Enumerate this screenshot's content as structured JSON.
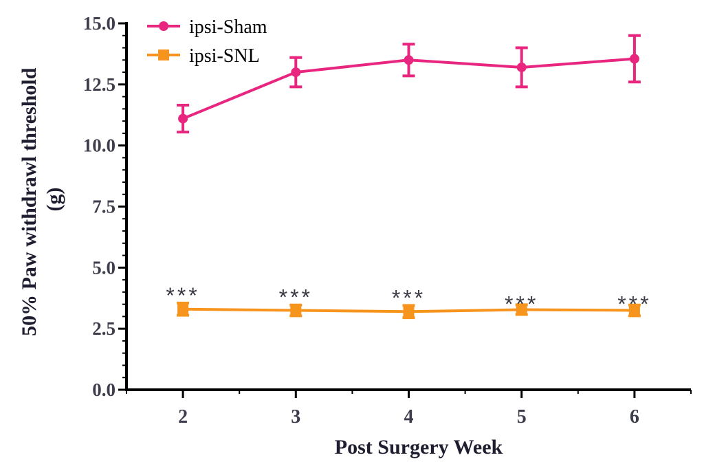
{
  "chart_data": {
    "type": "line",
    "x": [
      2,
      3,
      4,
      5,
      6
    ],
    "xlabel": "Post Surgery Week",
    "ylabel": "50% Paw withdrawl threshold (g)",
    "ylabel_lines": [
      "50% Paw withdrawl threshold",
      "(g)"
    ],
    "xlim": [
      1.5,
      6.5
    ],
    "ylim": [
      0,
      15
    ],
    "yticks": [
      0.0,
      2.5,
      5.0,
      7.5,
      10.0,
      12.5,
      15.0
    ],
    "ytick_labels": [
      "0.0",
      "2.5",
      "5.0",
      "7.5",
      "10.0",
      "12.5",
      "15.0"
    ],
    "xtick_labels": [
      "2",
      "3",
      "4",
      "5",
      "6"
    ],
    "grid": false,
    "legend_position": "top-left",
    "series": [
      {
        "name": "ipsi-Sham",
        "color": "#e8267f",
        "marker": "circle",
        "values": [
          11.1,
          13.0,
          13.5,
          13.2,
          13.55
        ],
        "errors": [
          0.55,
          0.6,
          0.65,
          0.8,
          0.95
        ]
      },
      {
        "name": "ipsi-SNL",
        "color": "#f7941d",
        "marker": "square",
        "values": [
          3.3,
          3.25,
          3.2,
          3.28,
          3.25
        ],
        "errors": [
          0.25,
          0.22,
          0.25,
          0.2,
          0.22
        ]
      }
    ],
    "annotations": [
      {
        "x": 2,
        "text": "***"
      },
      {
        "x": 3,
        "text": "***"
      },
      {
        "x": 4,
        "text": "***"
      },
      {
        "x": 5,
        "text": "***"
      },
      {
        "x": 6,
        "text": "***"
      }
    ]
  }
}
